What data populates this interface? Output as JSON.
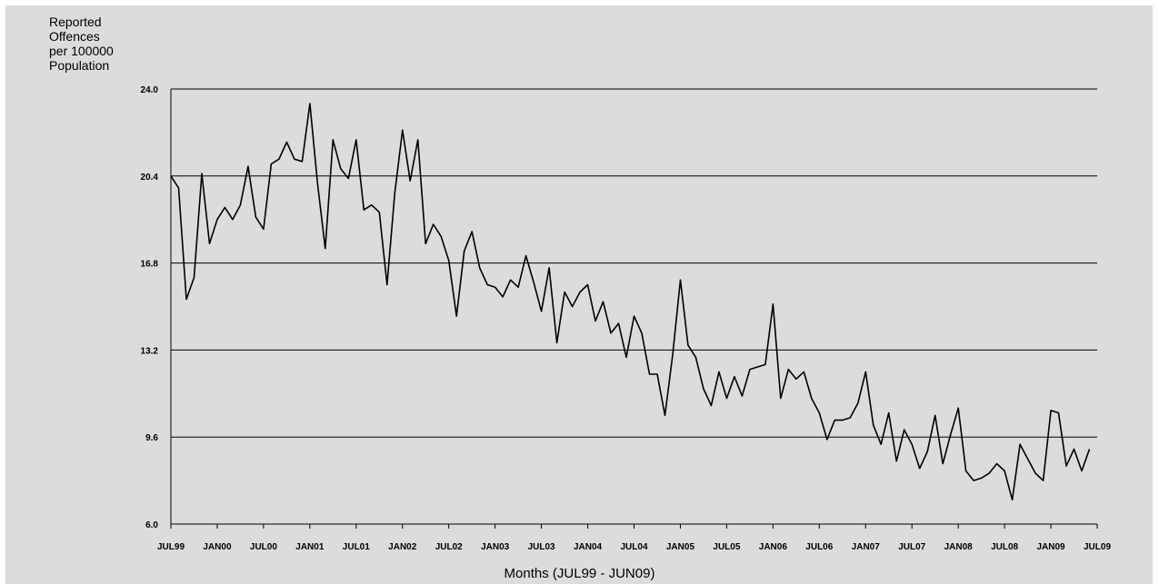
{
  "chart_data": {
    "type": "line",
    "ylabel_lines": [
      "Reported",
      "Offences",
      "per 100000",
      "Population"
    ],
    "xlabel": "Months (JUL99 - JUN09)",
    "ylim": [
      6.0,
      24.0
    ],
    "y_ticks": [
      "24.0",
      "20.4",
      "16.8",
      "13.2",
      "9.6",
      "6.0"
    ],
    "y_tick_values": [
      24.0,
      20.4,
      16.8,
      13.2,
      9.6,
      6.0
    ],
    "x_ticks": [
      "JUL99",
      "JAN00",
      "JUL00",
      "JAN01",
      "JUL01",
      "JAN02",
      "JUL02",
      "JAN03",
      "JUL03",
      "JAN04",
      "JUL04",
      "JAN05",
      "JUL05",
      "JAN06",
      "JUL06",
      "JAN07",
      "JUL07",
      "JAN08",
      "JUL08",
      "JAN09",
      "JUL09"
    ],
    "grid": "horizontal",
    "colors": {
      "line": "#000000",
      "background": "#dcdcdc",
      "grid": "#000000"
    },
    "series": [
      {
        "values": [
          20.4,
          19.9,
          15.3,
          16.2,
          20.5,
          17.6,
          18.6,
          19.1,
          18.6,
          19.2,
          20.8,
          18.7,
          18.2,
          20.9,
          21.1,
          21.8,
          21.1,
          21.0,
          23.4,
          20.1,
          17.4,
          21.9,
          20.7,
          20.3,
          21.9,
          19.0,
          19.2,
          18.9,
          15.9,
          19.7,
          22.3,
          20.2,
          21.9,
          17.6,
          18.4,
          17.9,
          16.9,
          14.6,
          17.3,
          18.1,
          16.6,
          15.9,
          15.8,
          15.4,
          16.1,
          15.8,
          17.1,
          16.0,
          14.8,
          16.6,
          13.5,
          15.6,
          15.0,
          15.6,
          15.9,
          14.4,
          15.2,
          13.9,
          14.3,
          12.9,
          14.6,
          13.9,
          12.2,
          12.2,
          10.5,
          13.0,
          16.1,
          13.4,
          12.9,
          11.6,
          10.9,
          12.3,
          11.2,
          12.1,
          11.3,
          12.4,
          12.5,
          12.6,
          15.1,
          11.2,
          12.4,
          12.0,
          12.3,
          11.2,
          10.6,
          9.5,
          10.3,
          10.3,
          10.4,
          11.0,
          12.3,
          10.1,
          9.3,
          10.6,
          8.6,
          9.9,
          9.3,
          8.3,
          9.0,
          10.5,
          8.5,
          9.7,
          10.8,
          8.2,
          7.8,
          7.9,
          8.1,
          8.5,
          8.2,
          7.0,
          9.3,
          8.7,
          8.1,
          7.8,
          10.7,
          10.6,
          8.4,
          9.1,
          8.2,
          9.1
        ]
      }
    ]
  }
}
